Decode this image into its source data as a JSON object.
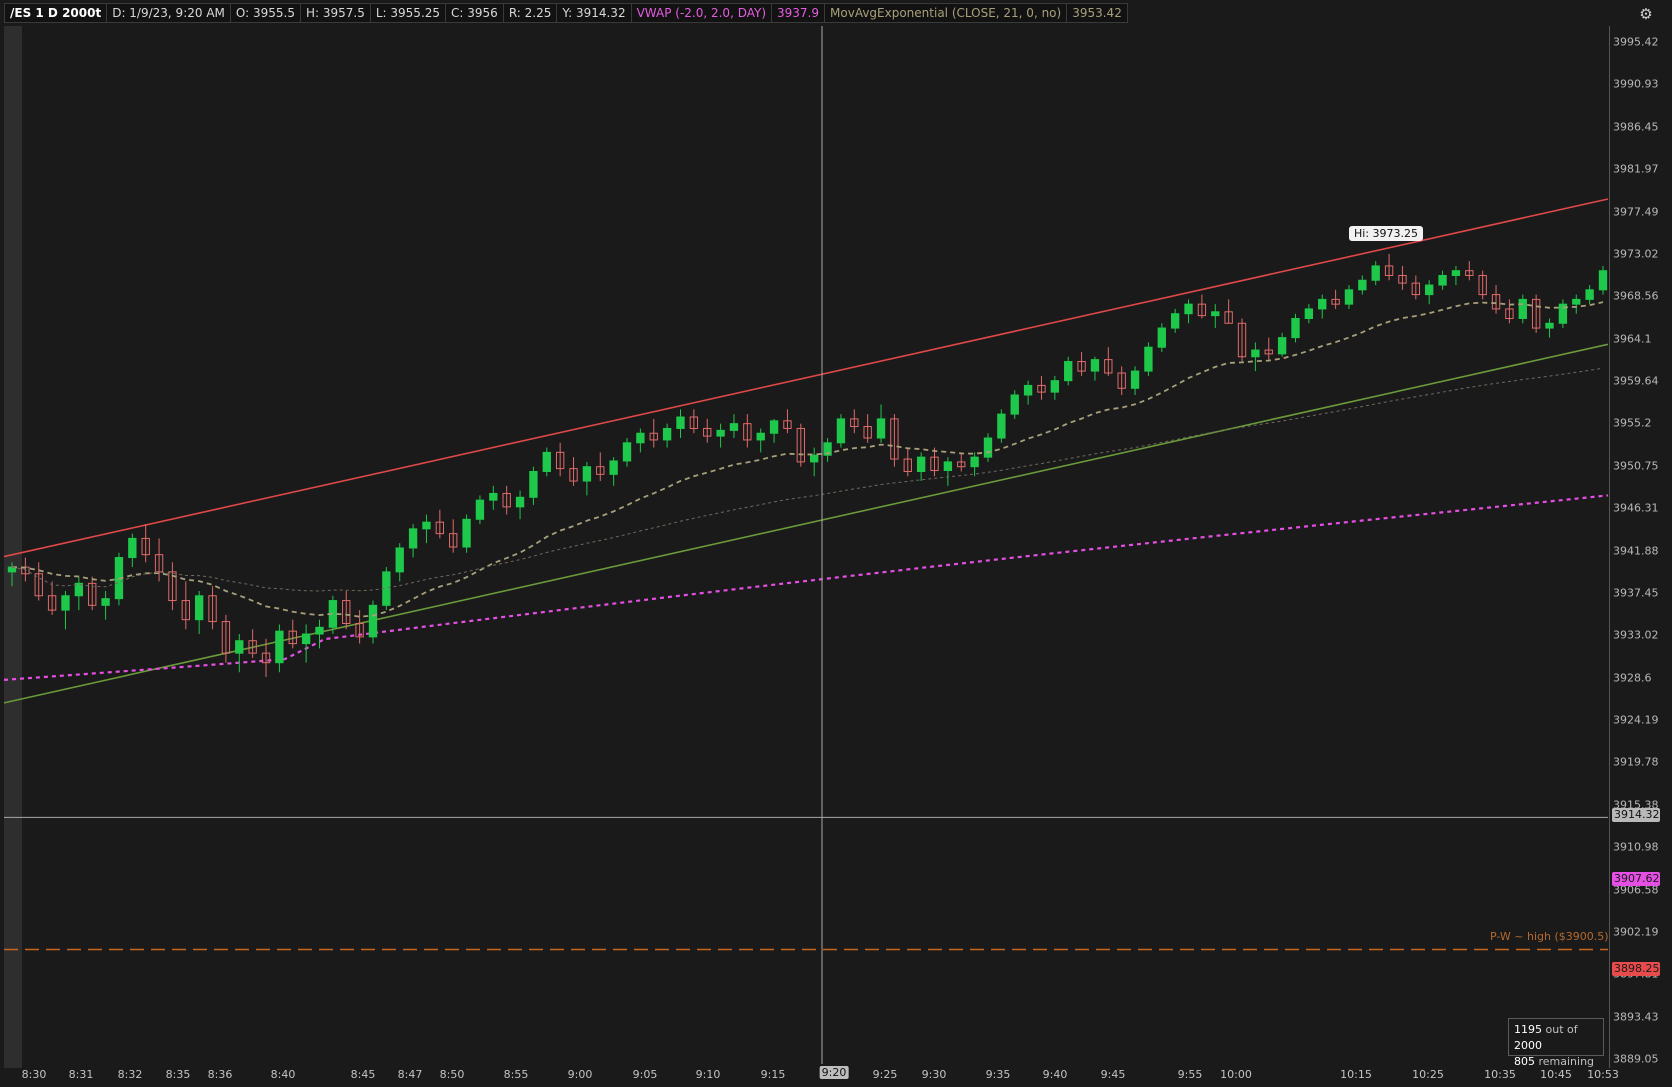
{
  "header": {
    "symbol": "/ES 1 D 2000t",
    "date": "D: 1/9/23, 9:20 AM",
    "open": "O: 3955.5",
    "high": "H: 3957.5",
    "low": "L: 3955.25",
    "close": "C: 3956",
    "range": "R: 2.25",
    "y_value": "Y: 3914.32",
    "vwap_label": "VWAP (-2.0, 2.0, DAY)",
    "vwap_value": "3937.9",
    "ema_label": "MovAvgExponential (CLOSE, 21, 0, no)",
    "ema_value": "3953.42"
  },
  "icons": {
    "settings": "settings-icon"
  },
  "price_axis": {
    "ticks": [
      "3995.42",
      "3990.93",
      "3986.45",
      "3981.97",
      "3977.49",
      "3973.02",
      "3968.56",
      "3964.1",
      "3959.64",
      "3955.2",
      "3950.75",
      "3946.31",
      "3941.88",
      "3937.45",
      "3933.02",
      "3928.6",
      "3924.19",
      "3919.78",
      "3915.38",
      "3910.98",
      "3906.58",
      "3902.19",
      "3897.81",
      "3893.43",
      "3889.05"
    ],
    "cursor_tag": "3914.32",
    "vwap_tag": "3907.62",
    "last_tag": "3898.25"
  },
  "time_axis": {
    "labels": [
      "8:30",
      "8:31",
      "8:32",
      "8:35",
      "8:36",
      "8:40",
      "8:45",
      "8:47",
      "8:50",
      "8:55",
      "9:00",
      "9:05",
      "9:10",
      "9:15",
      "9:25",
      "9:30",
      "9:35",
      "9:40",
      "9:45",
      "9:55",
      "10:00",
      "10:15",
      "10:25",
      "10:35",
      "10:45",
      "10:53"
    ],
    "cursor_tag": "9:20"
  },
  "annotations": {
    "hi_bubble": "Hi: 3973.25",
    "pw_label": "P-W ~ high ($3900.5)"
  },
  "counter": {
    "count": "1195",
    "out_of": "out of",
    "total": "2000",
    "remaining_count": "805",
    "remaining": "remaining"
  },
  "colors": {
    "background": "#1a1a1a",
    "up_candle": "#1ec84a",
    "down_candle": "#e06a6a",
    "upper_channel": "#e04848",
    "lower_channel": "#6a9a3a",
    "vwap": "#e64fe4",
    "ema": "#a7a07a",
    "pw_line": "#c8661e",
    "crosshair": "#a8a8a8"
  },
  "chart_data": {
    "type": "candlestick",
    "symbol": "/ES",
    "aggregation": "2000 tick",
    "y_range": [
      3889.05,
      3995.42
    ],
    "last_price": 3898.25,
    "crosshair": {
      "time": "9:20",
      "price": 3914.32
    },
    "session_high": 3973.25,
    "reference_line": {
      "label": "P-W ~ high ($3900.5)",
      "value": 3900.5
    },
    "vwap_band": {
      "start": 3928.7,
      "end": 3948.0
    },
    "upper_channel": {
      "start": 3941.6,
      "end": 3979.0
    },
    "lower_channel": {
      "start": 3926.3,
      "end": 3963.8
    },
    "candles": [
      [
        3940.0,
        3941.0,
        3938.5,
        3940.5
      ],
      [
        3940.5,
        3941.5,
        3939.0,
        3939.8
      ],
      [
        3939.8,
        3941.0,
        3937.0,
        3937.5
      ],
      [
        3937.5,
        3939.0,
        3935.5,
        3936.0
      ],
      [
        3936.0,
        3938.0,
        3934.0,
        3937.5
      ],
      [
        3937.5,
        3939.5,
        3936.0,
        3938.8
      ],
      [
        3938.8,
        3939.5,
        3936.0,
        3936.5
      ],
      [
        3936.5,
        3938.0,
        3935.0,
        3937.2
      ],
      [
        3937.2,
        3942.0,
        3936.5,
        3941.5
      ],
      [
        3941.5,
        3944.0,
        3940.5,
        3943.5
      ],
      [
        3943.5,
        3945.0,
        3941.0,
        3941.8
      ],
      [
        3941.8,
        3943.5,
        3939.0,
        3940.0
      ],
      [
        3940.0,
        3941.0,
        3936.0,
        3937.0
      ],
      [
        3937.0,
        3939.0,
        3934.0,
        3935.0
      ],
      [
        3935.0,
        3938.0,
        3933.5,
        3937.5
      ],
      [
        3937.5,
        3938.5,
        3934.0,
        3934.8
      ],
      [
        3934.8,
        3935.5,
        3930.5,
        3931.5
      ],
      [
        3931.5,
        3933.5,
        3929.5,
        3932.8
      ],
      [
        3932.8,
        3934.0,
        3931.0,
        3931.5
      ],
      [
        3931.5,
        3933.0,
        3929.0,
        3930.5
      ],
      [
        3930.5,
        3934.5,
        3929.5,
        3933.8
      ],
      [
        3933.8,
        3935.0,
        3932.0,
        3932.5
      ],
      [
        3932.5,
        3934.5,
        3930.5,
        3933.5
      ],
      [
        3933.5,
        3935.0,
        3932.0,
        3934.2
      ],
      [
        3934.2,
        3937.5,
        3933.5,
        3937.0
      ],
      [
        3937.0,
        3938.0,
        3934.0,
        3934.6
      ],
      [
        3934.6,
        3936.0,
        3932.5,
        3933.2
      ],
      [
        3933.2,
        3937.0,
        3932.5,
        3936.5
      ],
      [
        3936.5,
        3940.5,
        3936.0,
        3940.0
      ],
      [
        3940.0,
        3943.0,
        3939.0,
        3942.5
      ],
      [
        3942.5,
        3945.0,
        3941.5,
        3944.5
      ],
      [
        3944.5,
        3946.0,
        3943.0,
        3945.2
      ],
      [
        3945.2,
        3946.5,
        3943.5,
        3944.0
      ],
      [
        3944.0,
        3945.5,
        3942.0,
        3942.6
      ],
      [
        3942.6,
        3946.0,
        3942.0,
        3945.5
      ],
      [
        3945.5,
        3948.0,
        3945.0,
        3947.5
      ],
      [
        3947.5,
        3949.0,
        3946.5,
        3948.2
      ],
      [
        3948.2,
        3949.0,
        3946.0,
        3946.8
      ],
      [
        3946.8,
        3948.5,
        3945.5,
        3947.8
      ],
      [
        3947.8,
        3951.0,
        3947.0,
        3950.5
      ],
      [
        3950.5,
        3953.0,
        3950.0,
        3952.5
      ],
      [
        3952.5,
        3953.5,
        3950.0,
        3950.8
      ],
      [
        3950.8,
        3952.0,
        3949.0,
        3949.5
      ],
      [
        3949.5,
        3951.5,
        3948.0,
        3951.0
      ],
      [
        3951.0,
        3952.5,
        3949.5,
        3950.2
      ],
      [
        3950.2,
        3952.0,
        3949.0,
        3951.6
      ],
      [
        3951.6,
        3954.0,
        3951.0,
        3953.5
      ],
      [
        3953.5,
        3955.0,
        3952.5,
        3954.5
      ],
      [
        3954.5,
        3956.0,
        3953.0,
        3953.8
      ],
      [
        3953.8,
        3955.5,
        3953.0,
        3955.0
      ],
      [
        3955.0,
        3957.0,
        3954.0,
        3956.2
      ],
      [
        3956.2,
        3957.0,
        3954.5,
        3955.0
      ],
      [
        3955.0,
        3956.0,
        3953.5,
        3954.2
      ],
      [
        3954.2,
        3955.5,
        3953.0,
        3954.8
      ],
      [
        3954.8,
        3956.5,
        3954.0,
        3955.5
      ],
      [
        3955.5,
        3956.5,
        3953.0,
        3953.8
      ],
      [
        3953.8,
        3955.0,
        3952.5,
        3954.5
      ],
      [
        3954.5,
        3956.0,
        3953.5,
        3955.8
      ],
      [
        3955.8,
        3957.0,
        3954.5,
        3955.0
      ],
      [
        3955.0,
        3955.5,
        3951.0,
        3951.5
      ],
      [
        3951.5,
        3953.0,
        3950.0,
        3952.2
      ],
      [
        3952.2,
        3954.0,
        3951.5,
        3953.5
      ],
      [
        3953.5,
        3956.5,
        3953.0,
        3956.0
      ],
      [
        3956.0,
        3957.0,
        3954.5,
        3955.2
      ],
      [
        3955.2,
        3956.5,
        3953.5,
        3954.0
      ],
      [
        3954.0,
        3957.5,
        3953.5,
        3956.0
      ],
      [
        3956.0,
        3956.5,
        3951.0,
        3951.8
      ],
      [
        3951.8,
        3953.0,
        3950.0,
        3950.5
      ],
      [
        3950.5,
        3952.5,
        3949.5,
        3952.0
      ],
      [
        3952.0,
        3953.0,
        3950.0,
        3950.6
      ],
      [
        3950.6,
        3952.0,
        3949.0,
        3951.5
      ],
      [
        3951.5,
        3952.5,
        3950.5,
        3951.0
      ],
      [
        3951.0,
        3952.5,
        3950.0,
        3952.0
      ],
      [
        3952.0,
        3954.5,
        3951.5,
        3954.0
      ],
      [
        3954.0,
        3957.0,
        3953.5,
        3956.5
      ],
      [
        3956.5,
        3959.0,
        3956.0,
        3958.5
      ],
      [
        3958.5,
        3960.0,
        3957.5,
        3959.5
      ],
      [
        3959.5,
        3960.5,
        3958.0,
        3958.8
      ],
      [
        3958.8,
        3960.5,
        3958.0,
        3960.0
      ],
      [
        3960.0,
        3962.5,
        3959.5,
        3962.0
      ],
      [
        3962.0,
        3963.0,
        3960.5,
        3961.0
      ],
      [
        3961.0,
        3962.5,
        3960.0,
        3962.2
      ],
      [
        3962.2,
        3963.5,
        3960.5,
        3960.8
      ],
      [
        3960.8,
        3961.5,
        3958.5,
        3959.2
      ],
      [
        3959.2,
        3961.5,
        3958.5,
        3961.0
      ],
      [
        3961.0,
        3964.0,
        3960.5,
        3963.5
      ],
      [
        3963.5,
        3966.0,
        3963.0,
        3965.5
      ],
      [
        3965.5,
        3967.5,
        3965.0,
        3967.0
      ],
      [
        3967.0,
        3968.5,
        3966.0,
        3968.0
      ],
      [
        3968.0,
        3969.0,
        3966.5,
        3966.8
      ],
      [
        3966.8,
        3968.0,
        3965.5,
        3967.2
      ],
      [
        3967.2,
        3968.5,
        3966.0,
        3966.0
      ],
      [
        3966.0,
        3966.5,
        3962.0,
        3962.5
      ],
      [
        3962.5,
        3964.0,
        3961.0,
        3963.2
      ],
      [
        3963.2,
        3964.5,
        3962.0,
        3962.8
      ],
      [
        3962.8,
        3965.0,
        3962.5,
        3964.5
      ],
      [
        3964.5,
        3967.0,
        3964.0,
        3966.5
      ],
      [
        3966.5,
        3968.0,
        3966.0,
        3967.5
      ],
      [
        3967.5,
        3969.0,
        3966.5,
        3968.5
      ],
      [
        3968.5,
        3969.5,
        3967.5,
        3968.0
      ],
      [
        3968.0,
        3970.0,
        3967.5,
        3969.5
      ],
      [
        3969.5,
        3971.0,
        3969.0,
        3970.5
      ],
      [
        3970.5,
        3972.5,
        3970.0,
        3972.0
      ],
      [
        3972.0,
        3973.25,
        3970.5,
        3971.0
      ],
      [
        3971.0,
        3972.0,
        3969.5,
        3970.2
      ],
      [
        3970.2,
        3971.0,
        3968.5,
        3969.0
      ],
      [
        3969.0,
        3970.5,
        3968.0,
        3970.0
      ],
      [
        3970.0,
        3971.5,
        3969.5,
        3971.0
      ],
      [
        3971.0,
        3972.0,
        3970.0,
        3971.5
      ],
      [
        3971.5,
        3972.5,
        3970.5,
        3971.0
      ],
      [
        3971.0,
        3971.5,
        3968.5,
        3969.0
      ],
      [
        3969.0,
        3970.0,
        3967.0,
        3967.5
      ],
      [
        3967.5,
        3968.5,
        3966.0,
        3966.5
      ],
      [
        3966.5,
        3969.0,
        3966.0,
        3968.5
      ],
      [
        3968.5,
        3969.0,
        3965.0,
        3965.5
      ],
      [
        3965.5,
        3966.5,
        3964.5,
        3966.0
      ],
      [
        3966.0,
        3968.5,
        3965.5,
        3968.0
      ],
      [
        3968.0,
        3969.0,
        3967.0,
        3968.5
      ],
      [
        3968.5,
        3970.0,
        3968.0,
        3969.5
      ],
      [
        3969.5,
        3972.0,
        3969.0,
        3971.5
      ]
    ]
  }
}
